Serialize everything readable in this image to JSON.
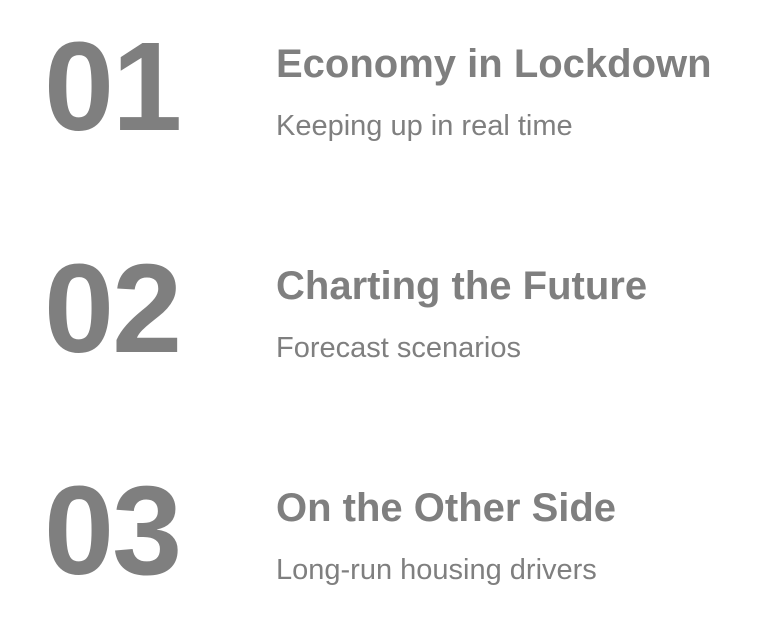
{
  "sections": [
    {
      "number": "01",
      "title": "Economy in Lockdown",
      "subtitle": "Keeping up in real time"
    },
    {
      "number": "02",
      "title": "Charting the Future",
      "subtitle": "Forecast scenarios"
    },
    {
      "number": "03",
      "title": "On the Other Side",
      "subtitle": "Long-run housing drivers"
    }
  ],
  "colors": {
    "text": "#7f7f7f",
    "background": "#ffffff"
  }
}
